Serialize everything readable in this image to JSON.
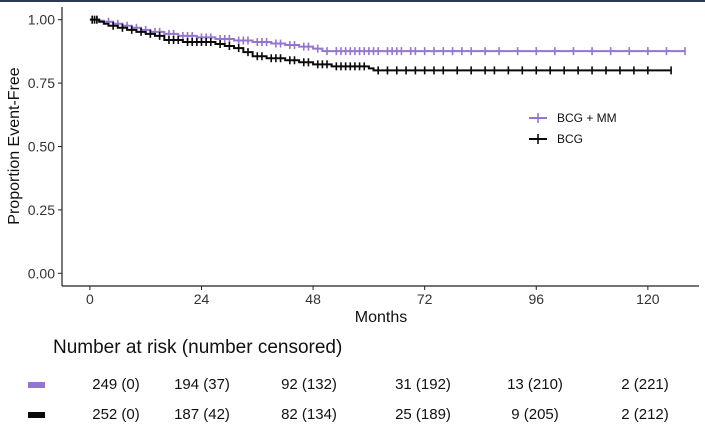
{
  "chart_data": {
    "type": "line",
    "subtype": "kaplan-meier",
    "title": "",
    "xlabel": "Months",
    "ylabel": "Proportion Event-Free",
    "xlim": [
      -6,
      131
    ],
    "ylim": [
      -0.05,
      1.05
    ],
    "x_ticks": [
      0,
      24,
      48,
      72,
      96,
      120
    ],
    "x_tick_labels": [
      "0",
      "24",
      "48",
      "72",
      "96",
      "120"
    ],
    "y_ticks": [
      0,
      0.25,
      0.5,
      0.75,
      1.0
    ],
    "y_tick_labels": [
      "0.00",
      "0.25",
      "0.50",
      "0.75",
      "1.00"
    ],
    "grid": false,
    "legend_position": "right",
    "series": [
      {
        "name": "BCG + MM",
        "color": "#9475d0",
        "end_x": 128,
        "steps": [
          [
            0,
            1.0
          ],
          [
            2,
            0.996
          ],
          [
            3,
            0.992
          ],
          [
            5,
            0.984
          ],
          [
            7,
            0.976
          ],
          [
            9,
            0.968
          ],
          [
            11,
            0.96
          ],
          [
            13,
            0.952
          ],
          [
            16,
            0.944
          ],
          [
            19,
            0.936
          ],
          [
            23,
            0.93
          ],
          [
            27,
            0.924
          ],
          [
            31,
            0.918
          ],
          [
            35,
            0.912
          ],
          [
            39,
            0.906
          ],
          [
            42,
            0.9
          ],
          [
            45,
            0.894
          ],
          [
            48,
            0.886
          ],
          [
            50,
            0.876
          ]
        ],
        "censored": [
          0.5,
          1.5,
          4,
          6,
          8,
          10,
          12,
          14,
          15,
          17,
          18,
          20,
          21,
          22,
          24,
          25,
          26,
          28,
          29,
          30,
          32,
          33,
          34,
          36,
          37,
          38,
          40,
          41,
          43,
          44,
          46,
          47,
          49,
          51,
          53,
          54,
          55,
          56,
          57,
          58,
          59,
          60,
          61,
          62,
          64,
          65,
          66,
          67,
          69,
          70,
          72,
          74,
          76,
          78,
          80,
          82,
          85,
          88,
          92,
          96,
          100,
          104,
          108,
          112,
          116,
          120,
          124,
          128
        ]
      },
      {
        "name": "BCG",
        "color": "#0a0a0a",
        "end_x": 125,
        "steps": [
          [
            0,
            1.0
          ],
          [
            2,
            0.992
          ],
          [
            3,
            0.984
          ],
          [
            4,
            0.976
          ],
          [
            6,
            0.968
          ],
          [
            8,
            0.96
          ],
          [
            10,
            0.952
          ],
          [
            12,
            0.944
          ],
          [
            14,
            0.936
          ],
          [
            16,
            0.92
          ],
          [
            20,
            0.912
          ],
          [
            27,
            0.904
          ],
          [
            29,
            0.896
          ],
          [
            31,
            0.888
          ],
          [
            33,
            0.872
          ],
          [
            35,
            0.856
          ],
          [
            38,
            0.848
          ],
          [
            42,
            0.84
          ],
          [
            45,
            0.832
          ],
          [
            48,
            0.824
          ],
          [
            52,
            0.816
          ],
          [
            60,
            0.808
          ],
          [
            61,
            0.8
          ]
        ],
        "censored": [
          0.5,
          1,
          1.5,
          5,
          7,
          9,
          11,
          13,
          15,
          17,
          18,
          19,
          21,
          22,
          23,
          24,
          25,
          26,
          28,
          30,
          32,
          34,
          36,
          37,
          39,
          40,
          41,
          43,
          44,
          46,
          47,
          49,
          50,
          51,
          53,
          54,
          55,
          56,
          57,
          58,
          59,
          62,
          64,
          66,
          68,
          70,
          72,
          74,
          76,
          79,
          82,
          85,
          87,
          90,
          93,
          96,
          99,
          102,
          105,
          108,
          111,
          114,
          117,
          120,
          125
        ]
      }
    ]
  },
  "risk_table": {
    "title": "Number at risk (number censored)",
    "rows": [
      {
        "name": "BCG + MM",
        "color": "#9475d0",
        "values": [
          "249 (0)",
          "194 (37)",
          "92 (132)",
          "31 (192)",
          "13 (210)",
          "2 (221)"
        ]
      },
      {
        "name": "BCG",
        "color": "#0a0a0a",
        "values": [
          "252 (0)",
          "187 (42)",
          "82 (134)",
          "25 (189)",
          "9 (205)",
          "2 (212)"
        ]
      }
    ]
  }
}
